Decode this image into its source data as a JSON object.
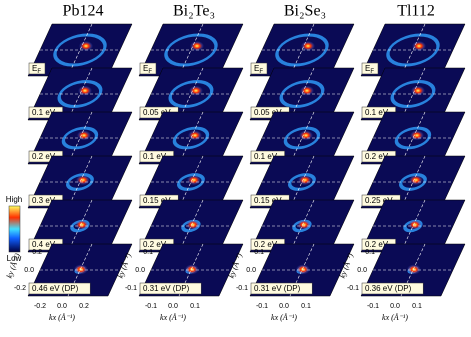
{
  "colorbar": {
    "high": "High",
    "low": "Low"
  },
  "columns": [
    {
      "title": "Pb124",
      "labels": [
        {
          "text": "E",
          "sub": "F"
        },
        {
          "text": "0.1 eV"
        },
        {
          "text": "0.2 eV"
        },
        {
          "text": "0.3 eV"
        },
        {
          "text": "0.4 eV"
        },
        {
          "text": "0.46 eV (DP)"
        }
      ],
      "yticks": [
        "0.2",
        "0.0",
        "-0.2"
      ],
      "xticks": [
        "-0.2",
        "0.0",
        "0.2"
      ],
      "ylabel": "ky (Å⁻¹)",
      "xlabel": "kx (Å⁻¹)"
    },
    {
      "title": "Bi₂Te₃",
      "labels": [
        {
          "text": "E",
          "sub": "F"
        },
        {
          "text": "0.05 eV"
        },
        {
          "text": "0.1 eV"
        },
        {
          "text": "0.15 eV"
        },
        {
          "text": "0.2 eV"
        },
        {
          "text": "0.31 eV (DP)"
        }
      ],
      "yticks": [
        "0.1",
        "0.0",
        "-0.1"
      ],
      "xticks": [
        "-0.1",
        "0.0",
        "0.1"
      ],
      "ylabel": "ky (Å⁻¹)",
      "xlabel": "kx (Å⁻¹)"
    },
    {
      "title": "Bi₂Se₃",
      "labels": [
        {
          "text": "E",
          "sub": "F"
        },
        {
          "text": "0.05 eV"
        },
        {
          "text": "0.1 eV"
        },
        {
          "text": "0.15 eV"
        },
        {
          "text": "0.2 eV"
        },
        {
          "text": "0.31 eV (DP)"
        }
      ],
      "yticks": [
        "0.1",
        "0.0",
        "-0.1"
      ],
      "xticks": [
        "-0.1",
        "0.0",
        "0.1"
      ],
      "ylabel": "ky (Å⁻¹)",
      "xlabel": "kx (Å⁻¹)"
    },
    {
      "title": "Tl112",
      "labels": [
        {
          "text": "E",
          "sub": "F"
        },
        {
          "text": "0.1 eV"
        },
        {
          "text": "0.2 eV"
        },
        {
          "text": "0.25 eV"
        },
        {
          "text": "0.2 eV"
        },
        {
          "text": "0.36 eV (DP)"
        }
      ],
      "yticks": [
        "0.1",
        "0.0",
        "-0.1"
      ],
      "xticks": [
        "-0.1",
        "0.0",
        "0.1"
      ],
      "ylabel": "ky (Å⁻¹)",
      "xlabel": "kx (Å⁻¹)"
    }
  ]
}
